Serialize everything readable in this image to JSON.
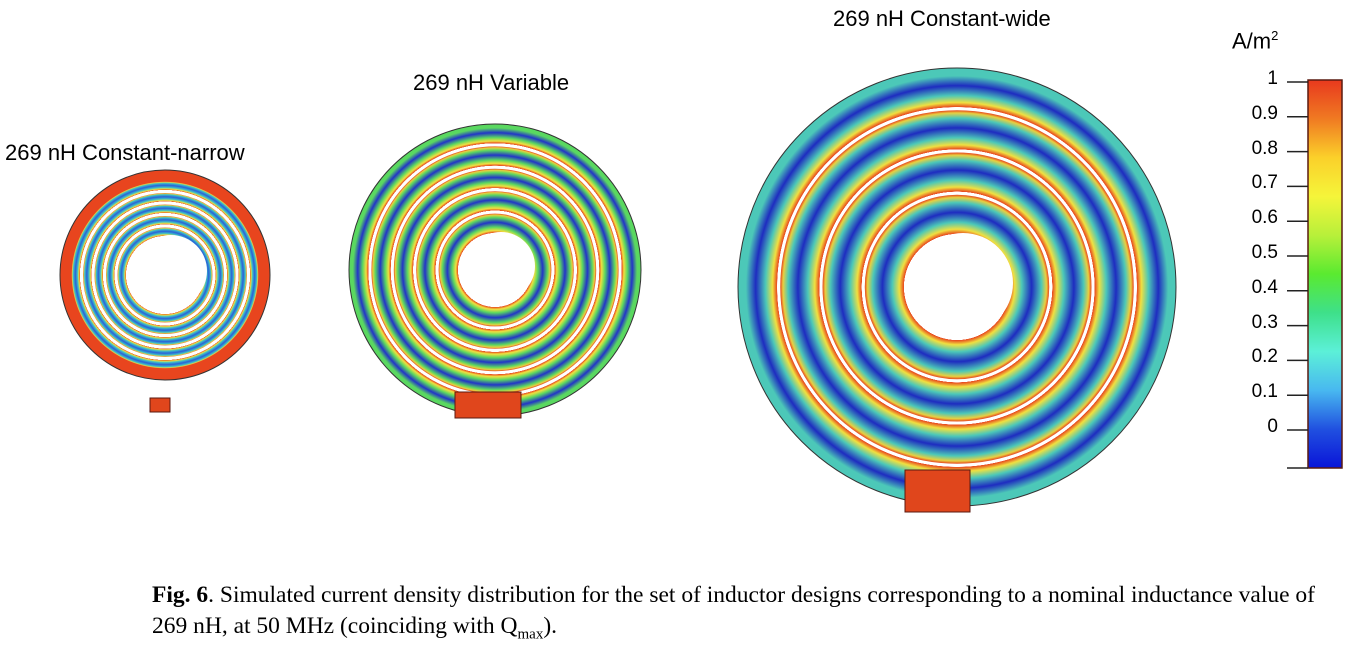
{
  "figure": {
    "panels": [
      {
        "title": "269 nH Constant-narrow"
      },
      {
        "title": "269 nH Variable"
      },
      {
        "title": "269 nH Constant-wide"
      }
    ],
    "colorbar": {
      "unit_base": "A/m",
      "unit_exp": "2",
      "ticks": [
        "1",
        "0.9",
        "0.8",
        "0.7",
        "0.6",
        "0.5",
        "0.4",
        "0.3",
        "0.2",
        "0.1",
        "0"
      ],
      "colors": [
        "#e8391e",
        "#f07a22",
        "#fbd02a",
        "#f5f53a",
        "#b8f03a",
        "#5aea30",
        "#3ee08a",
        "#5cf0d8",
        "#48b8f0",
        "#2050e0",
        "#0a14d8"
      ]
    },
    "caption": {
      "label": "Fig. 6",
      "text": ".  Simulated current density distribution for the set of inductor designs corresponding to a nominal inductance value of 269 nH, at 50 MHz (coinciding with Q",
      "sub": "max",
      "end": ")."
    }
  }
}
